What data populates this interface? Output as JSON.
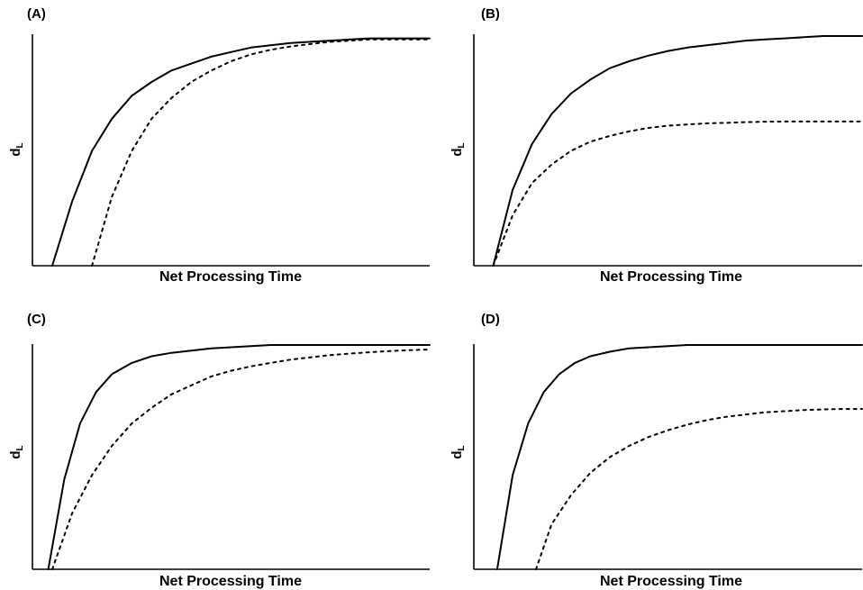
{
  "chart_data": [
    {
      "type": "line",
      "panel_label": "(A)",
      "xlabel": "Net Processing Time",
      "ylabel": {
        "main": "d",
        "sub": "L"
      },
      "xlim": [
        0,
        100
      ],
      "ylim": [
        0,
        1
      ],
      "series": [
        {
          "style": "solid",
          "x": [
            5,
            10,
            15,
            20,
            25,
            30,
            35,
            40,
            45,
            50,
            55,
            60,
            65,
            70,
            75,
            80,
            85,
            90,
            95,
            100
          ],
          "values": [
            0,
            0.28,
            0.5,
            0.64,
            0.74,
            0.8,
            0.85,
            0.88,
            0.91,
            0.93,
            0.95,
            0.96,
            0.97,
            0.975,
            0.98,
            0.985,
            0.99,
            0.99,
            0.99,
            0.99
          ]
        },
        {
          "style": "dotted",
          "x": [
            15,
            20,
            25,
            30,
            35,
            40,
            45,
            50,
            55,
            60,
            65,
            70,
            75,
            80,
            85,
            90,
            95,
            100
          ],
          "values": [
            0,
            0.3,
            0.5,
            0.64,
            0.73,
            0.8,
            0.85,
            0.89,
            0.92,
            0.94,
            0.955,
            0.965,
            0.975,
            0.98,
            0.985,
            0.985,
            0.985,
            0.985
          ]
        }
      ]
    },
    {
      "type": "line",
      "panel_label": "(B)",
      "xlabel": "Net Processing Time",
      "ylabel": {
        "main": "d",
        "sub": "L"
      },
      "xlim": [
        0,
        100
      ],
      "ylim": [
        0,
        1
      ],
      "series": [
        {
          "style": "solid",
          "x": [
            5,
            10,
            15,
            20,
            25,
            30,
            35,
            40,
            45,
            50,
            55,
            60,
            65,
            70,
            75,
            80,
            85,
            90,
            95,
            100
          ],
          "values": [
            0,
            0.33,
            0.53,
            0.66,
            0.75,
            0.81,
            0.86,
            0.89,
            0.915,
            0.935,
            0.95,
            0.96,
            0.97,
            0.98,
            0.985,
            0.99,
            0.995,
            1.0,
            1.0,
            1.0
          ]
        },
        {
          "style": "dotted",
          "x": [
            5,
            10,
            15,
            20,
            25,
            30,
            35,
            40,
            45,
            50,
            55,
            60,
            65,
            70,
            75,
            80,
            85,
            90,
            95,
            100
          ],
          "values": [
            0,
            0.22,
            0.36,
            0.44,
            0.5,
            0.54,
            0.565,
            0.585,
            0.6,
            0.61,
            0.615,
            0.62,
            0.622,
            0.625,
            0.627,
            0.628,
            0.628,
            0.628,
            0.628,
            0.628
          ]
        }
      ]
    },
    {
      "type": "line",
      "panel_label": "(C)",
      "xlabel": "Net Processing Time",
      "ylabel": {
        "main": "d",
        "sub": "L"
      },
      "xlim": [
        0,
        100
      ],
      "ylim": [
        0,
        1
      ],
      "series": [
        {
          "style": "solid",
          "x": [
            4,
            8,
            12,
            16,
            20,
            25,
            30,
            35,
            40,
            45,
            50,
            55,
            60,
            65,
            70,
            75,
            80,
            85,
            90,
            100
          ],
          "values": [
            0,
            0.4,
            0.65,
            0.79,
            0.87,
            0.92,
            0.95,
            0.965,
            0.975,
            0.985,
            0.99,
            0.995,
            1.0,
            1.0,
            1.0,
            1.0,
            1.0,
            1.0,
            1.0,
            1.0
          ]
        },
        {
          "style": "dotted",
          "x": [
            5,
            10,
            15,
            20,
            25,
            30,
            35,
            40,
            45,
            50,
            55,
            60,
            65,
            70,
            75,
            80,
            85,
            90,
            95,
            100
          ],
          "values": [
            0,
            0.25,
            0.42,
            0.55,
            0.65,
            0.72,
            0.78,
            0.82,
            0.86,
            0.885,
            0.905,
            0.92,
            0.935,
            0.945,
            0.955,
            0.962,
            0.968,
            0.973,
            0.977,
            0.98
          ]
        }
      ]
    },
    {
      "type": "line",
      "panel_label": "(D)",
      "xlabel": "Net Processing Time",
      "ylabel": {
        "main": "d",
        "sub": "L"
      },
      "xlim": [
        0,
        100
      ],
      "ylim": [
        0,
        1
      ],
      "series": [
        {
          "style": "solid",
          "x": [
            6,
            10,
            14,
            18,
            22,
            26,
            30,
            35,
            40,
            45,
            50,
            55,
            60,
            65,
            70,
            75,
            80,
            85,
            90,
            100
          ],
          "values": [
            0,
            0.42,
            0.65,
            0.79,
            0.87,
            0.92,
            0.95,
            0.97,
            0.985,
            0.99,
            0.995,
            1.0,
            1.0,
            1.0,
            1.0,
            1.0,
            1.0,
            1.0,
            1.0,
            1.0
          ]
        },
        {
          "style": "dotted",
          "x": [
            16,
            20,
            25,
            30,
            35,
            40,
            45,
            50,
            55,
            60,
            65,
            70,
            75,
            80,
            85,
            90,
            95,
            100
          ],
          "values": [
            0,
            0.2,
            0.33,
            0.43,
            0.5,
            0.55,
            0.59,
            0.62,
            0.645,
            0.665,
            0.68,
            0.69,
            0.7,
            0.705,
            0.71,
            0.713,
            0.715,
            0.715
          ]
        }
      ]
    }
  ]
}
